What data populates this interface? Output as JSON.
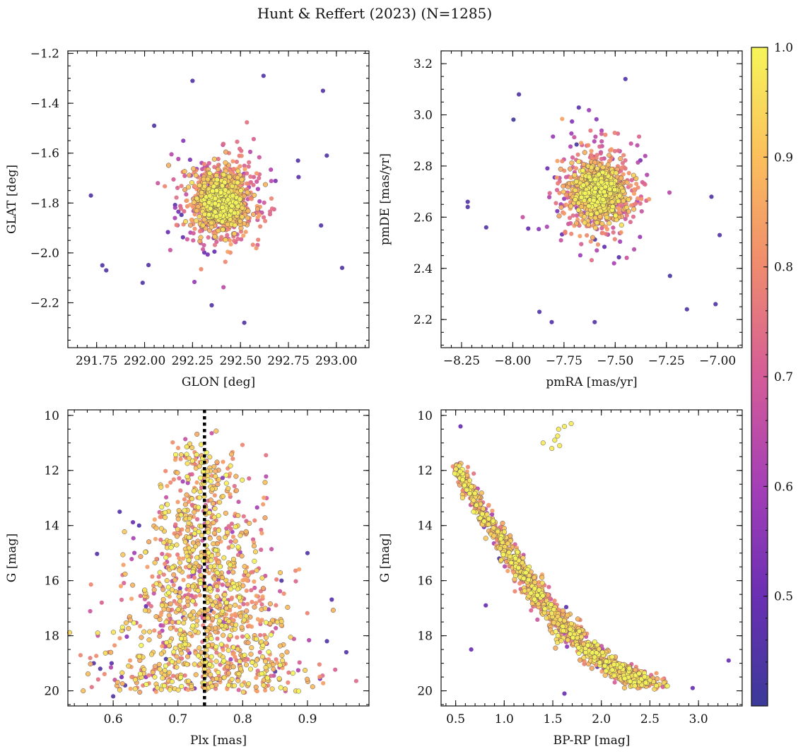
{
  "colors": {
    "colormap": [
      "#3b3a99",
      "#6a2fb3",
      "#a43fb6",
      "#d45c98",
      "#ef8a6e",
      "#fbbf5c",
      "#f6f55a"
    ],
    "edge": "#555555",
    "parallax_line": "#000000"
  },
  "chart_data": {
    "title": "Hunt & Reffert (2023) (N=1285)",
    "n_members": 1285,
    "colorbar": {
      "label": "",
      "range": [
        0.4,
        1.0
      ],
      "ticks": [
        0.5,
        0.6,
        0.7,
        0.8,
        0.9,
        1.0
      ],
      "tick_labels": [
        "0.5",
        "0.6",
        "0.7",
        "0.8",
        "0.9",
        "1.0"
      ]
    },
    "panels": [
      {
        "id": "glon-glat",
        "type": "scatter",
        "xlabel": "GLON [deg]",
        "ylabel": "GLAT [deg]",
        "xlim": [
          291.6,
          293.17
        ],
        "ylim": [
          -2.38,
          -1.19
        ],
        "xticks": [
          291.75,
          292.0,
          292.25,
          292.5,
          292.75,
          293.0
        ],
        "xtick_labels": [
          "291.75",
          "292.00",
          "292.25",
          "292.50",
          "292.75",
          "293.00"
        ],
        "yticks": [
          -2.2,
          -2.0,
          -1.8,
          -1.6,
          -1.4,
          -1.2
        ],
        "ytick_labels": [
          "−2.2",
          "−2.0",
          "−1.8",
          "−1.6",
          "−1.4",
          "−1.2"
        ],
        "core": {
          "x": 292.4,
          "y": -1.8
        },
        "outliers": [
          [
            291.72,
            -1.77
          ],
          [
            291.78,
            -2.05
          ],
          [
            291.8,
            -2.07
          ],
          [
            291.99,
            -2.12
          ],
          [
            292.05,
            -1.49
          ],
          [
            292.62,
            -1.29
          ],
          [
            292.93,
            -1.35
          ],
          [
            292.95,
            -1.61
          ],
          [
            293.03,
            -2.06
          ],
          [
            292.35,
            -2.21
          ],
          [
            292.52,
            -2.28
          ],
          [
            292.25,
            -1.31
          ],
          [
            292.8,
            -1.63
          ],
          [
            292.92,
            -1.89
          ]
        ]
      },
      {
        "id": "pm",
        "type": "scatter",
        "xlabel": "pmRA [mas/yr]",
        "ylabel": "pmDE [mas/yr]",
        "xlim": [
          -8.35,
          -6.88
        ],
        "ylim": [
          2.09,
          3.25
        ],
        "xticks": [
          -8.25,
          -8.0,
          -7.75,
          -7.5,
          -7.25,
          -7.0
        ],
        "xtick_labels": [
          "−8.25",
          "−8.00",
          "−7.75",
          "−7.50",
          "−7.25",
          "−7.00"
        ],
        "yticks": [
          2.2,
          2.4,
          2.6,
          2.8,
          3.0,
          3.2
        ],
        "ytick_labels": [
          "2.2",
          "2.4",
          "2.6",
          "2.8",
          "3.0",
          "3.2"
        ],
        "core": {
          "x": -7.58,
          "y": 2.7
        },
        "outliers": [
          [
            -8.22,
            2.66
          ],
          [
            -8.22,
            2.64
          ],
          [
            -7.97,
            3.08
          ],
          [
            -7.45,
            3.14
          ],
          [
            -7.01,
            2.26
          ],
          [
            -6.99,
            2.53
          ],
          [
            -7.6,
            2.19
          ],
          [
            -7.81,
            2.19
          ],
          [
            -7.15,
            2.24
          ],
          [
            -7.03,
            2.68
          ],
          [
            -8.13,
            2.56
          ],
          [
            -7.87,
            2.23
          ]
        ]
      },
      {
        "id": "plx-g",
        "type": "scatter",
        "xlabel": "Plx [mas]",
        "ylabel": "G [mag]",
        "xlim": [
          0.53,
          0.995
        ],
        "ylim": [
          20.55,
          9.8
        ],
        "xticks": [
          0.6,
          0.7,
          0.8,
          0.9
        ],
        "xtick_labels": [
          "0.6",
          "0.7",
          "0.8",
          "0.9"
        ],
        "yticks": [
          10,
          12,
          14,
          16,
          18,
          20
        ],
        "ytick_labels": [
          "10",
          "12",
          "14",
          "16",
          "18",
          "20"
        ],
        "reference_line": {
          "x": 0.741,
          "style": "dotted"
        },
        "outliers": [
          [
            0.57,
            19.0
          ],
          [
            0.58,
            19.2
          ],
          [
            0.61,
            13.5
          ],
          [
            0.96,
            18.6
          ],
          [
            0.93,
            18.2
          ],
          [
            0.86,
            16.0
          ],
          [
            0.9,
            15.0
          ],
          [
            0.6,
            20.2
          ],
          [
            0.85,
            19.3
          ],
          [
            0.64,
            14.0
          ]
        ]
      },
      {
        "id": "cmd",
        "type": "scatter",
        "xlabel": "BP-RP [mag]",
        "ylabel": "G [mag]",
        "xlim": [
          0.35,
          3.45
        ],
        "ylim": [
          20.55,
          9.8
        ],
        "xticks": [
          0.5,
          1.0,
          1.5,
          2.0,
          2.5,
          3.0
        ],
        "xtick_labels": [
          "0.5",
          "1.0",
          "1.5",
          "2.0",
          "2.5",
          "3.0"
        ],
        "yticks": [
          10,
          12,
          14,
          16,
          18,
          20
        ],
        "ytick_labels": [
          "10",
          "12",
          "14",
          "16",
          "18",
          "20"
        ],
        "sequence": [
          [
            0.52,
            11.7
          ],
          [
            0.6,
            12.5
          ],
          [
            0.75,
            13.4
          ],
          [
            0.95,
            14.3
          ],
          [
            1.1,
            15.2
          ],
          [
            1.25,
            16.0
          ],
          [
            1.4,
            16.8
          ],
          [
            1.6,
            17.6
          ],
          [
            1.8,
            18.3
          ],
          [
            2.0,
            18.9
          ],
          [
            2.25,
            19.4
          ],
          [
            2.5,
            19.8
          ]
        ],
        "giants": [
          [
            1.56,
            10.5
          ],
          [
            1.62,
            10.4
          ],
          [
            1.69,
            10.3
          ],
          [
            1.52,
            10.9
          ],
          [
            1.57,
            11.1
          ],
          [
            1.55,
            10.75
          ],
          [
            1.4,
            11.0
          ],
          [
            1.49,
            11.2
          ]
        ],
        "outliers": [
          [
            0.66,
            18.5
          ],
          [
            0.81,
            16.9
          ],
          [
            3.31,
            18.9
          ],
          [
            2.94,
            19.9
          ],
          [
            1.62,
            20.1
          ],
          [
            0.55,
            10.4
          ]
        ]
      }
    ]
  }
}
